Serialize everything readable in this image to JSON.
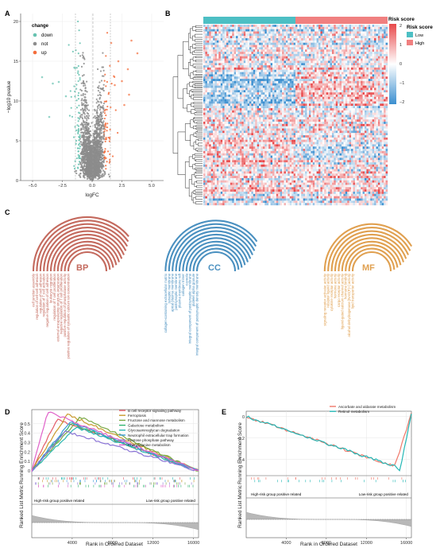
{
  "panels": {
    "a": "A",
    "b": "B",
    "c": "C",
    "d": "D",
    "e": "E"
  },
  "colors": {
    "down": "#66c2b0",
    "not": "#8c8c8c",
    "up": "#f46d3c",
    "low": "#4dbfc4",
    "high": "#f08080",
    "bp": "#c46a5e",
    "cc": "#4a90c0",
    "mf": "#e0a050",
    "heat_low": "#3b8fd0",
    "heat_mid": "#ffffff",
    "heat_high": "#e8484a"
  },
  "volcano": {
    "legend_title": "change",
    "legend_items": [
      "down",
      "not",
      "up"
    ],
    "xlabel": "logFC",
    "ylabel": "−log10 pvalue"
  },
  "heatmap": {
    "legend_title": "Risk score",
    "group_title": "Risk score",
    "group_items": [
      "Low",
      "High"
    ],
    "scale_ticks": [
      "2",
      "1",
      "0",
      "−1",
      "−2"
    ]
  },
  "go": {
    "bp": {
      "label": "BP",
      "terms": [
        "cell junction assembly",
        "regulation of cell-cell adhesion",
        "regulation of cell adhesion",
        "regulation of T cell activation",
        "negative regulation of cell adhesion",
        "leukocyte migration",
        "regulation of T cell proliferation",
        "external encapsulating structure organization",
        "negative regulation of T cell proliferation",
        "positive regulation of phosphatase activity",
        "positive regulation of cytosolic calcium ion concentration"
      ]
    },
    "cc": {
      "label": "CC",
      "terms": [
        "collagen-containing extracellular matrix",
        "synaptic membrane",
        "apical plasma membrane",
        "postsynaptic membrane",
        "plasma membrane raft",
        "collagen trimer",
        "caveola",
        "integral component of postsynaptic membrane",
        "platelet alpha granule",
        "integral component of postsynaptic density membrane"
      ]
    },
    "mf": {
      "label": "MF",
      "terms": [
        "signaling receptor activator activity",
        "receptor ligand activity",
        "cytokine receptor activity",
        "hormone activity",
        "cargo receptor activity",
        "ligand-gated calcium channel activity",
        "hormone binding",
        "alcohol dehydrogenase [NAD(P)+] activity",
        "lipid transporter activity"
      ]
    }
  },
  "gsea_d": {
    "legend": [
      "B cell receptor signaling pathway",
      "Ferroptosis",
      "Fructose and mannose metabolism",
      "Galactose metabolism",
      "Glycosaminoglycan degradation",
      "Neutrophil extracellular trap formation",
      "Pentose phosphate pathway",
      "Phenylalanine metabolism"
    ],
    "ylabel": "Running Enrichment Score",
    "ylabel2": "Ranked List Metric",
    "xlabel": "Rank in Ordered Dataset",
    "left_note": "High-risk group positive related",
    "right_note": "Low-risk group positive related"
  },
  "gsea_e": {
    "legend": [
      "Ascorbate and aldarate metabolism",
      "Retinol metabolism"
    ],
    "ylabel": "Running Enrichment Score",
    "ylabel2": "Ranked List Metric",
    "xlabel": "Rank in Ordered Dataset",
    "left_note": "High-risk group positive related",
    "right_note": "Low-risk group positive related"
  },
  "chart_data": [
    {
      "type": "scatter",
      "panel": "A",
      "xlabel": "logFC",
      "ylabel": "−log10 pvalue",
      "xlim": [
        -6,
        6
      ],
      "ylim": [
        0,
        21
      ],
      "xticks": [
        -5,
        -2.5,
        0,
        2.5,
        5
      ],
      "xtick_labels": [
        "−5.0",
        "−2.5",
        "0.0",
        "2.5",
        "5.0"
      ],
      "yticks": [
        0,
        5,
        10,
        15,
        20
      ],
      "legend": [
        "down",
        "not",
        "up"
      ],
      "thresholds": {
        "logfc": [
          -1,
          1
        ],
        "pvalue_line": 1.3
      },
      "grid": true
    },
    {
      "type": "heatmap",
      "panel": "B",
      "legend_title": "Risk score",
      "value_range": [
        -2,
        2
      ],
      "groups": [
        "Low",
        "High"
      ]
    },
    {
      "type": "line",
      "panel": "D",
      "xlabel": "Rank in Ordered Dataset",
      "ylabel": "Running Enrichment Score",
      "xticks": [
        4000,
        8000,
        12000,
        16000
      ],
      "yticks": [
        0,
        0.1,
        0.2,
        0.3,
        0.4,
        0.5
      ],
      "ylim": [
        -0.05,
        0.65
      ],
      "xlim": [
        0,
        16500
      ],
      "series": [
        {
          "name": "B cell receptor signaling pathway",
          "color": "#e35d6a",
          "peak": [
            2500,
            0.55
          ]
        },
        {
          "name": "Ferroptosis",
          "color": "#c99a2e",
          "peak": [
            3500,
            0.6
          ]
        },
        {
          "name": "Fructose and mannose metabolism",
          "color": "#79a843",
          "peak": [
            4800,
            0.57
          ]
        },
        {
          "name": "Galactose metabolism",
          "color": "#2fb36f",
          "peak": [
            3900,
            0.5
          ]
        },
        {
          "name": "Glycosaminoglycan degradation",
          "color": "#2cb7b2",
          "peak": [
            4400,
            0.46
          ]
        },
        {
          "name": "Neutrophil extracellular trap formation",
          "color": "#3a9ad9",
          "peak": [
            3800,
            0.52
          ]
        },
        {
          "name": "Pentose phosphate pathway",
          "color": "#8a73d6",
          "peak": [
            3300,
            0.42
          ]
        },
        {
          "name": "Phenylalanine metabolism",
          "color": "#e062c9",
          "peak": [
            1600,
            0.63
          ]
        }
      ]
    },
    {
      "type": "line",
      "panel": "E",
      "xlabel": "Rank in Ordered Dataset",
      "ylabel": "Running Enrichment Score",
      "xticks": [
        4000,
        8000,
        12000,
        16000
      ],
      "yticks": [
        0,
        -0.2,
        -0.4
      ],
      "ylim": [
        -0.55,
        0.05
      ],
      "xlim": [
        0,
        16500
      ],
      "series": [
        {
          "name": "Ascorbate and aldarate metabolism",
          "color": "#f0786a",
          "trough": [
            14700,
            -0.5
          ]
        },
        {
          "name": "Retinol metabolism",
          "color": "#23b7b5",
          "trough": [
            15300,
            -0.52
          ]
        }
      ]
    }
  ]
}
